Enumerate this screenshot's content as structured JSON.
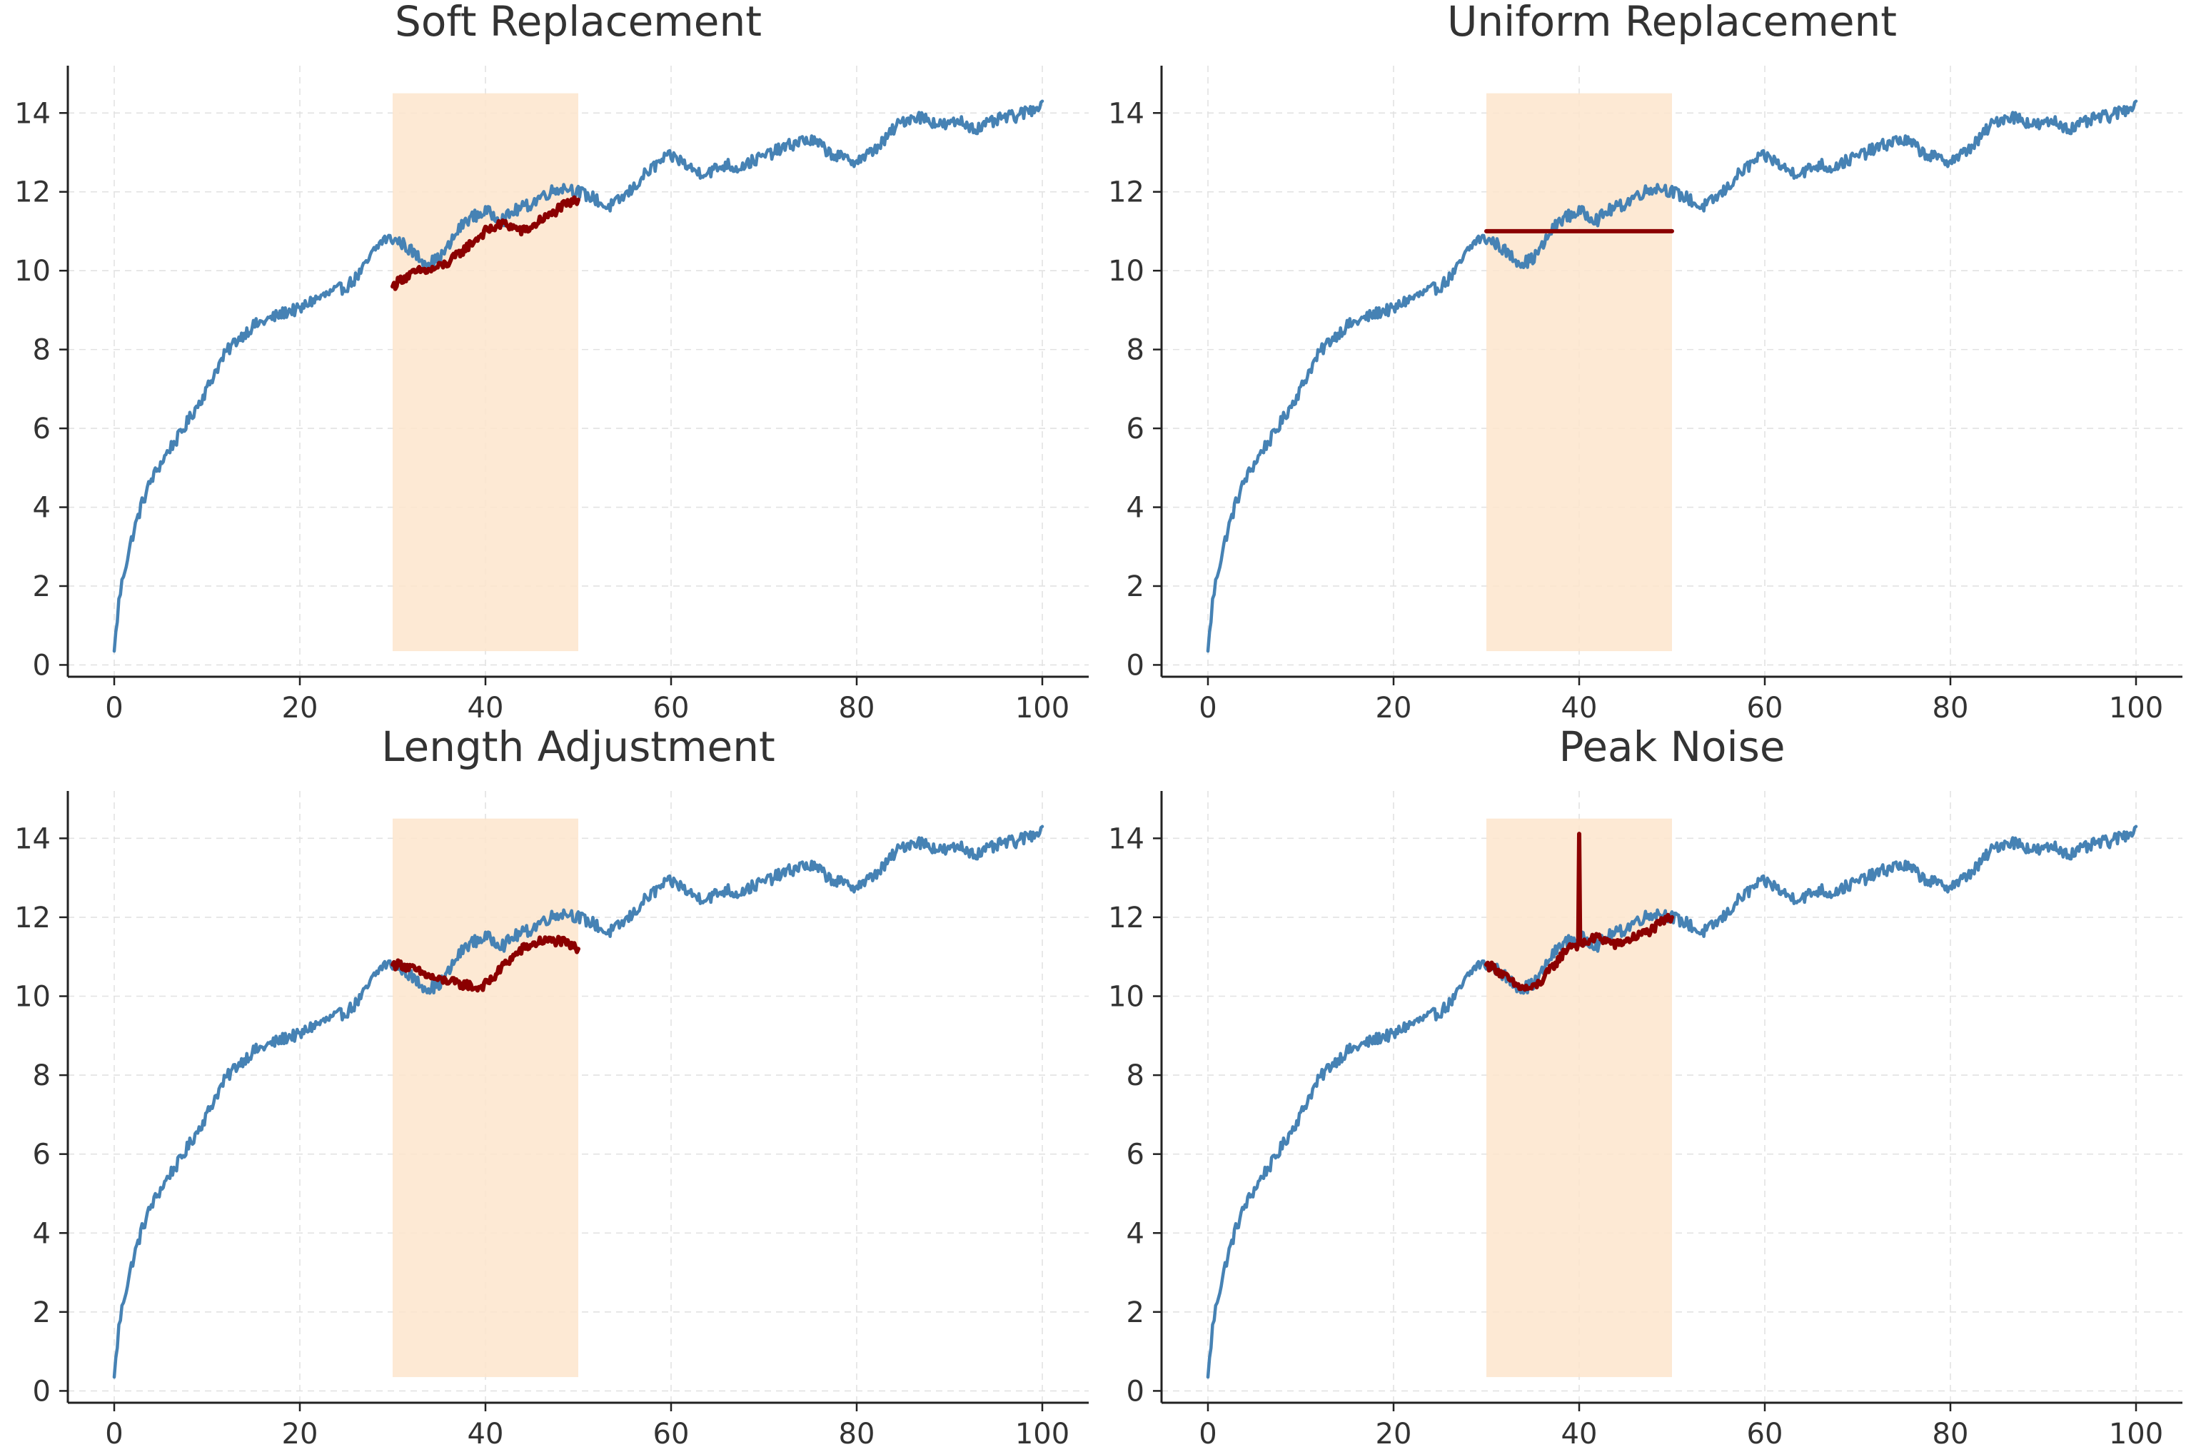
{
  "chart_data": [
    {
      "type": "line",
      "title": "Soft Replacement",
      "xlabel": "",
      "ylabel": "",
      "xlim": [
        -5,
        105
      ],
      "ylim": [
        -0.3,
        15.2
      ],
      "xticks": [
        0,
        20,
        40,
        60,
        80,
        100
      ],
      "yticks": [
        0,
        2,
        4,
        6,
        8,
        10,
        12,
        14
      ],
      "grid": true,
      "highlight_region": {
        "x": [
          30,
          50
        ],
        "y": [
          0.35,
          14.5
        ],
        "color": "#fde5cc"
      },
      "series": [
        {
          "color": "#4682b4",
          "x": [
            0,
            0.5,
            1,
            2,
            3,
            4,
            5,
            6,
            7,
            8,
            9,
            10,
            11,
            12,
            13,
            14,
            15,
            16,
            17,
            18,
            19,
            20,
            21,
            22,
            23,
            24,
            25,
            26,
            27,
            28,
            29,
            30,
            31,
            32,
            33,
            34,
            35,
            36,
            37,
            38,
            39,
            40,
            41,
            42,
            43,
            44,
            45,
            46,
            47,
            48,
            49,
            50,
            51,
            52,
            53,
            54,
            55,
            56,
            57,
            58,
            59,
            60,
            61,
            62,
            63,
            64,
            65,
            66,
            67,
            68,
            69,
            70,
            71,
            72,
            73,
            74,
            75,
            76,
            77,
            78,
            79,
            80,
            81,
            82,
            83,
            84,
            85,
            86,
            87,
            88,
            89,
            90,
            91,
            92,
            93,
            94,
            95,
            96,
            97,
            98,
            99,
            100
          ],
          "values": [
            0.35,
            1.6,
            2.3,
            3.3,
            4.1,
            4.7,
            5.1,
            5.5,
            5.8,
            6.2,
            6.6,
            7.0,
            7.5,
            7.9,
            8.2,
            8.4,
            8.6,
            8.7,
            8.8,
            8.9,
            9.0,
            9.0,
            9.2,
            9.3,
            9.4,
            9.5,
            9.6,
            9.8,
            10.1,
            10.5,
            10.8,
            10.8,
            10.7,
            10.5,
            10.3,
            10.2,
            10.3,
            10.6,
            11.0,
            11.3,
            11.4,
            11.5,
            11.4,
            11.3,
            11.5,
            11.6,
            11.7,
            11.9,
            12.0,
            12.1,
            12.1,
            12.0,
            11.9,
            11.8,
            11.6,
            11.7,
            11.9,
            12.1,
            12.4,
            12.6,
            12.8,
            12.9,
            12.8,
            12.6,
            12.5,
            12.5,
            12.6,
            12.7,
            12.6,
            12.7,
            12.8,
            12.9,
            13.0,
            13.1,
            13.2,
            13.3,
            13.3,
            13.2,
            13.0,
            12.9,
            12.8,
            12.8,
            12.9,
            13.1,
            13.3,
            13.6,
            13.8,
            13.9,
            13.9,
            13.8,
            13.7,
            13.7,
            13.8,
            13.7,
            13.6,
            13.7,
            13.8,
            13.9,
            13.9,
            14.0,
            14.1,
            14.3
          ]
        },
        {
          "color": "#8b0000",
          "x": [
            30,
            31,
            32,
            33,
            34,
            35,
            36,
            37,
            38,
            39,
            40,
            41,
            42,
            43,
            44,
            45,
            46,
            47,
            48,
            49,
            50
          ],
          "values": [
            9.6,
            9.8,
            9.9,
            10.0,
            10.0,
            10.1,
            10.2,
            10.4,
            10.6,
            10.8,
            11.0,
            11.1,
            11.2,
            11.1,
            11.0,
            11.1,
            11.3,
            11.4,
            11.6,
            11.7,
            11.8
          ]
        }
      ]
    },
    {
      "type": "line",
      "title": "Uniform Replacement",
      "xlabel": "",
      "ylabel": "",
      "xlim": [
        -5,
        105
      ],
      "ylim": [
        -0.3,
        15.2
      ],
      "xticks": [
        0,
        20,
        40,
        60,
        80,
        100
      ],
      "yticks": [
        0,
        2,
        4,
        6,
        8,
        10,
        12,
        14
      ],
      "grid": true,
      "highlight_region": {
        "x": [
          30,
          50
        ],
        "y": [
          0.35,
          14.5
        ],
        "color": "#fde5cc"
      },
      "series": [
        {
          "color": "#4682b4",
          "x": [
            0,
            0.5,
            1,
            2,
            3,
            4,
            5,
            6,
            7,
            8,
            9,
            10,
            11,
            12,
            13,
            14,
            15,
            16,
            17,
            18,
            19,
            20,
            21,
            22,
            23,
            24,
            25,
            26,
            27,
            28,
            29,
            30,
            31,
            32,
            33,
            34,
            35,
            36,
            37,
            38,
            39,
            40,
            41,
            42,
            43,
            44,
            45,
            46,
            47,
            48,
            49,
            50,
            51,
            52,
            53,
            54,
            55,
            56,
            57,
            58,
            59,
            60,
            61,
            62,
            63,
            64,
            65,
            66,
            67,
            68,
            69,
            70,
            71,
            72,
            73,
            74,
            75,
            76,
            77,
            78,
            79,
            80,
            81,
            82,
            83,
            84,
            85,
            86,
            87,
            88,
            89,
            90,
            91,
            92,
            93,
            94,
            95,
            96,
            97,
            98,
            99,
            100
          ],
          "values": [
            0.35,
            1.6,
            2.3,
            3.3,
            4.1,
            4.7,
            5.1,
            5.5,
            5.8,
            6.2,
            6.6,
            7.0,
            7.5,
            7.9,
            8.2,
            8.4,
            8.6,
            8.7,
            8.8,
            8.9,
            9.0,
            9.0,
            9.2,
            9.3,
            9.4,
            9.5,
            9.6,
            9.8,
            10.1,
            10.5,
            10.8,
            10.8,
            10.7,
            10.5,
            10.3,
            10.2,
            10.3,
            10.6,
            11.0,
            11.3,
            11.4,
            11.5,
            11.4,
            11.3,
            11.5,
            11.6,
            11.7,
            11.9,
            12.0,
            12.1,
            12.1,
            12.0,
            11.9,
            11.8,
            11.6,
            11.7,
            11.9,
            12.1,
            12.4,
            12.6,
            12.8,
            12.9,
            12.8,
            12.6,
            12.5,
            12.5,
            12.6,
            12.7,
            12.6,
            12.7,
            12.8,
            12.9,
            13.0,
            13.1,
            13.2,
            13.3,
            13.3,
            13.2,
            13.0,
            12.9,
            12.8,
            12.8,
            12.9,
            13.1,
            13.3,
            13.6,
            13.8,
            13.9,
            13.9,
            13.8,
            13.7,
            13.7,
            13.8,
            13.7,
            13.6,
            13.7,
            13.8,
            13.9,
            13.9,
            14.0,
            14.1,
            14.3
          ]
        },
        {
          "color": "#8b0000",
          "x": [
            30,
            50
          ],
          "values": [
            11.0,
            11.0
          ]
        }
      ]
    },
    {
      "type": "line",
      "title": "Length Adjustment",
      "xlabel": "",
      "ylabel": "",
      "xlim": [
        -5,
        105
      ],
      "ylim": [
        -0.3,
        15.2
      ],
      "xticks": [
        0,
        20,
        40,
        60,
        80,
        100
      ],
      "yticks": [
        0,
        2,
        4,
        6,
        8,
        10,
        12,
        14
      ],
      "grid": true,
      "highlight_region": {
        "x": [
          30,
          50
        ],
        "y": [
          0.35,
          14.5
        ],
        "color": "#fde5cc"
      },
      "series": [
        {
          "color": "#4682b4",
          "x": [
            0,
            0.5,
            1,
            2,
            3,
            4,
            5,
            6,
            7,
            8,
            9,
            10,
            11,
            12,
            13,
            14,
            15,
            16,
            17,
            18,
            19,
            20,
            21,
            22,
            23,
            24,
            25,
            26,
            27,
            28,
            29,
            30,
            31,
            32,
            33,
            34,
            35,
            36,
            37,
            38,
            39,
            40,
            41,
            42,
            43,
            44,
            45,
            46,
            47,
            48,
            49,
            50,
            51,
            52,
            53,
            54,
            55,
            56,
            57,
            58,
            59,
            60,
            61,
            62,
            63,
            64,
            65,
            66,
            67,
            68,
            69,
            70,
            71,
            72,
            73,
            74,
            75,
            76,
            77,
            78,
            79,
            80,
            81,
            82,
            83,
            84,
            85,
            86,
            87,
            88,
            89,
            90,
            91,
            92,
            93,
            94,
            95,
            96,
            97,
            98,
            99,
            100
          ],
          "values": [
            0.35,
            1.6,
            2.3,
            3.3,
            4.1,
            4.7,
            5.1,
            5.5,
            5.8,
            6.2,
            6.6,
            7.0,
            7.5,
            7.9,
            8.2,
            8.4,
            8.6,
            8.7,
            8.8,
            8.9,
            9.0,
            9.0,
            9.2,
            9.3,
            9.4,
            9.5,
            9.6,
            9.8,
            10.1,
            10.5,
            10.8,
            10.8,
            10.7,
            10.5,
            10.3,
            10.2,
            10.3,
            10.6,
            11.0,
            11.3,
            11.4,
            11.5,
            11.4,
            11.3,
            11.5,
            11.6,
            11.7,
            11.9,
            12.0,
            12.1,
            12.1,
            12.0,
            11.9,
            11.8,
            11.6,
            11.7,
            11.9,
            12.1,
            12.4,
            12.6,
            12.8,
            12.9,
            12.8,
            12.6,
            12.5,
            12.5,
            12.6,
            12.7,
            12.6,
            12.7,
            12.8,
            12.9,
            13.0,
            13.1,
            13.2,
            13.3,
            13.3,
            13.2,
            13.0,
            12.9,
            12.8,
            12.8,
            12.9,
            13.1,
            13.3,
            13.6,
            13.8,
            13.9,
            13.9,
            13.8,
            13.7,
            13.7,
            13.8,
            13.7,
            13.6,
            13.7,
            13.8,
            13.9,
            13.9,
            14.0,
            14.1,
            14.3
          ]
        },
        {
          "color": "#8b0000",
          "x": [
            30,
            31,
            32,
            33,
            34,
            35,
            36,
            37,
            38,
            39,
            40,
            41,
            42,
            43,
            44,
            45,
            46,
            47,
            48,
            49,
            50
          ],
          "values": [
            10.8,
            10.8,
            10.7,
            10.6,
            10.5,
            10.4,
            10.4,
            10.3,
            10.3,
            10.2,
            10.3,
            10.5,
            10.8,
            11.0,
            11.2,
            11.3,
            11.4,
            11.4,
            11.4,
            11.3,
            11.2
          ]
        }
      ]
    },
    {
      "type": "line",
      "title": "Peak Noise",
      "xlabel": "",
      "ylabel": "",
      "xlim": [
        -5,
        105
      ],
      "ylim": [
        -0.3,
        15.2
      ],
      "xticks": [
        0,
        20,
        40,
        60,
        80,
        100
      ],
      "yticks": [
        0,
        2,
        4,
        6,
        8,
        10,
        12,
        14
      ],
      "grid": true,
      "highlight_region": {
        "x": [
          30,
          50
        ],
        "y": [
          0.35,
          14.5
        ],
        "color": "#fde5cc"
      },
      "series": [
        {
          "color": "#4682b4",
          "x": [
            0,
            0.5,
            1,
            2,
            3,
            4,
            5,
            6,
            7,
            8,
            9,
            10,
            11,
            12,
            13,
            14,
            15,
            16,
            17,
            18,
            19,
            20,
            21,
            22,
            23,
            24,
            25,
            26,
            27,
            28,
            29,
            30,
            31,
            32,
            33,
            34,
            35,
            36,
            37,
            38,
            39,
            40,
            41,
            42,
            43,
            44,
            45,
            46,
            47,
            48,
            49,
            50,
            51,
            52,
            53,
            54,
            55,
            56,
            57,
            58,
            59,
            60,
            61,
            62,
            63,
            64,
            65,
            66,
            67,
            68,
            69,
            70,
            71,
            72,
            73,
            74,
            75,
            76,
            77,
            78,
            79,
            80,
            81,
            82,
            83,
            84,
            85,
            86,
            87,
            88,
            89,
            90,
            91,
            92,
            93,
            94,
            95,
            96,
            97,
            98,
            99,
            100
          ],
          "values": [
            0.35,
            1.6,
            2.3,
            3.3,
            4.1,
            4.7,
            5.1,
            5.5,
            5.8,
            6.2,
            6.6,
            7.0,
            7.5,
            7.9,
            8.2,
            8.4,
            8.6,
            8.7,
            8.8,
            8.9,
            9.0,
            9.0,
            9.2,
            9.3,
            9.4,
            9.5,
            9.6,
            9.8,
            10.1,
            10.5,
            10.8,
            10.8,
            10.7,
            10.5,
            10.3,
            10.2,
            10.3,
            10.6,
            11.0,
            11.3,
            11.4,
            11.5,
            11.4,
            11.3,
            11.5,
            11.6,
            11.7,
            11.9,
            12.0,
            12.1,
            12.1,
            12.0,
            11.9,
            11.8,
            11.6,
            11.7,
            11.9,
            12.1,
            12.4,
            12.6,
            12.8,
            12.9,
            12.8,
            12.6,
            12.5,
            12.5,
            12.6,
            12.7,
            12.6,
            12.7,
            12.8,
            12.9,
            13.0,
            13.1,
            13.2,
            13.3,
            13.3,
            13.2,
            13.0,
            12.9,
            12.8,
            12.8,
            12.9,
            13.1,
            13.3,
            13.6,
            13.8,
            13.9,
            13.9,
            13.8,
            13.7,
            13.7,
            13.8,
            13.7,
            13.6,
            13.7,
            13.8,
            13.9,
            13.9,
            14.0,
            14.1,
            14.3
          ]
        },
        {
          "color": "#8b0000",
          "x": [
            30,
            31,
            32,
            33,
            34,
            35,
            36,
            37,
            38,
            39,
            39.9,
            40,
            40.1,
            41,
            42,
            43,
            44,
            45,
            46,
            47,
            48,
            49,
            50
          ],
          "values": [
            10.8,
            10.7,
            10.5,
            10.3,
            10.2,
            10.2,
            10.4,
            10.7,
            11.0,
            11.3,
            11.3,
            14.0,
            11.3,
            11.4,
            11.5,
            11.4,
            11.3,
            11.4,
            11.5,
            11.6,
            11.7,
            11.9,
            12.0
          ]
        }
      ]
    }
  ]
}
